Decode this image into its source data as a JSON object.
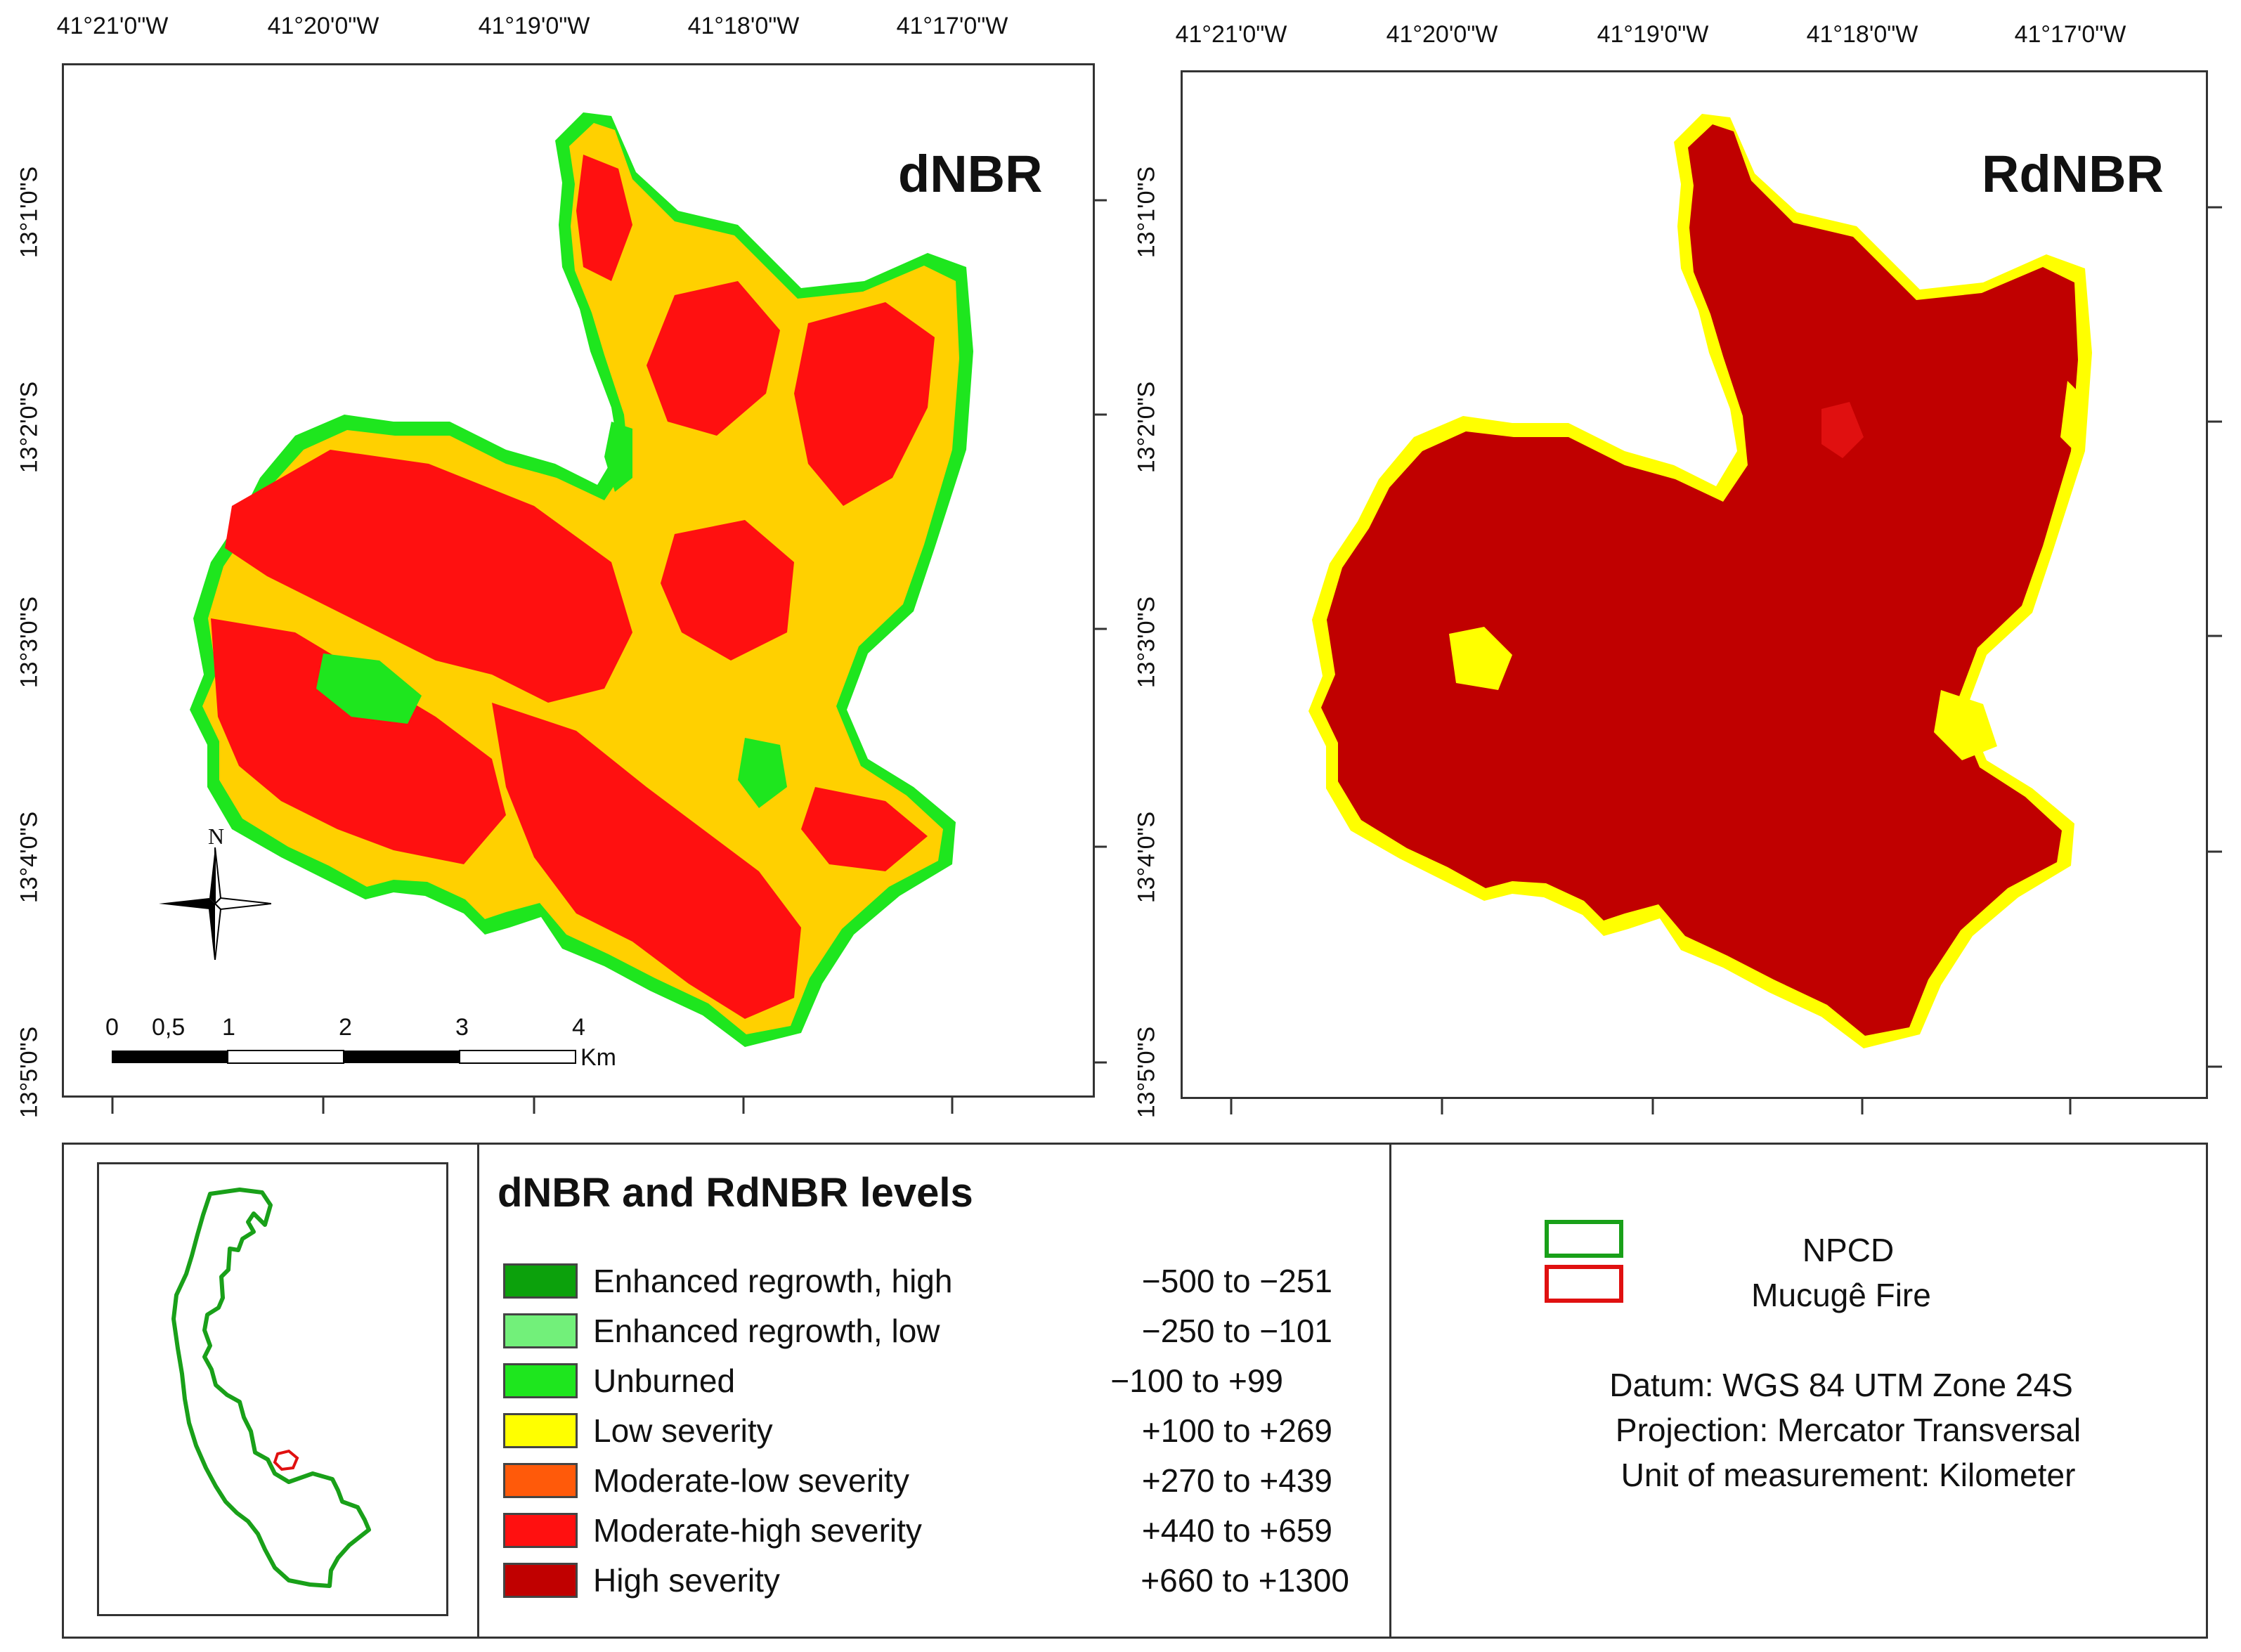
{
  "maps": [
    {
      "title": "dNBR",
      "lon_ticks": [
        "41°21'0\"W",
        "41°20'0\"W",
        "41°19'0\"W",
        "41°18'0\"W",
        "41°17'0\"W"
      ],
      "lat_ticks": [
        "13°1'0\"S",
        "13°2'0\"S",
        "13°3'0\"S",
        "13°4'0\"S",
        "13°5'0\"S"
      ]
    },
    {
      "title": "RdNBR",
      "lon_ticks": [
        "41°21'0\"W",
        "41°20'0\"W",
        "41°19'0\"W",
        "41°18'0\"W",
        "41°17'0\"W"
      ],
      "lat_ticks": [
        "13°1'0\"S",
        "13°2'0\"S",
        "13°3'0\"S",
        "13°4'0\"S",
        "13°5'0\"S"
      ]
    }
  ],
  "north_arrow": {
    "label": "N"
  },
  "scale_bar": {
    "ticks": [
      "0",
      "0,5",
      "1",
      "2",
      "3",
      "4"
    ],
    "unit": "Km"
  },
  "legend": {
    "title": "dNBR and RdNBR levels",
    "items": [
      {
        "label": "Enhanced regrowth, high",
        "range": "−500 to −251",
        "color": "#0ca10c"
      },
      {
        "label": "Enhanced regrowth, low",
        "range": "−250 to −101",
        "color": "#72f07a"
      },
      {
        "label": "Unburned",
        "range": "−100 to +99",
        "color": "#1ee61e"
      },
      {
        "label": "Low severity",
        "range": "+100 to +269",
        "color": "#ffff00"
      },
      {
        "label": "Moderate-low severity",
        "range": "+270 to +439",
        "color": "#ff5a0a"
      },
      {
        "label": "Moderate-high severity",
        "range": "+440 to +659",
        "color": "#ff1010"
      },
      {
        "label": "High severity",
        "range": "+660 to +1300",
        "color": "#c00000"
      }
    ]
  },
  "boundaries": [
    {
      "label": "NPCD",
      "color": "#19a019"
    },
    {
      "label": "Mucugê Fire",
      "color": "#e01010"
    }
  ],
  "map_info": {
    "datum": "Datum: WGS 84 UTM Zone 24S",
    "projection": "Projection: Mercator Transversal",
    "unit": "Unit of measurement: Kilometer"
  }
}
